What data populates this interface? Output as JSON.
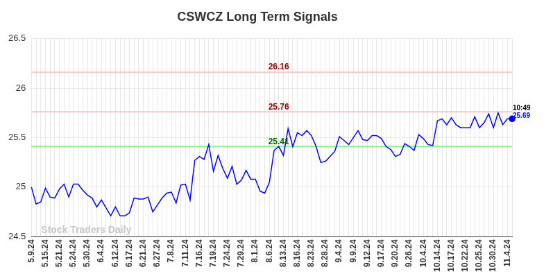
{
  "chart_data": {
    "type": "line",
    "title": "CSWCZ Long Term Signals",
    "watermark": "Stock Traders Daily",
    "color": "#0000ff",
    "ylim": [
      24.5,
      26.5
    ],
    "yticks": [
      24.5,
      25,
      25.5,
      26,
      26.5
    ],
    "grid": true,
    "categories": [
      "5.9.24",
      null,
      null,
      "5.15.24",
      null,
      null,
      "5.21.24",
      null,
      null,
      "5.24.24",
      null,
      null,
      "5.30.24",
      null,
      null,
      "6.4.24",
      null,
      null,
      "6.12.24",
      null,
      null,
      "6.17.24",
      null,
      null,
      "6.21.24",
      null,
      null,
      "6.27.24",
      null,
      null,
      "7.8.24",
      null,
      null,
      "7.11.24",
      null,
      null,
      "7.16.24",
      null,
      null,
      "7.19.24",
      null,
      null,
      "7.24.24",
      null,
      null,
      "7.29.24",
      null,
      null,
      "8.1.24",
      null,
      null,
      "8.6.24",
      null,
      null,
      "8.13.24",
      null,
      null,
      "8.16.24",
      null,
      null,
      "8.23.24",
      null,
      null,
      "8.28.24",
      null,
      null,
      "9.4.24",
      null,
      null,
      "9.9.24",
      null,
      null,
      "9.12.24",
      null,
      null,
      "9.17.24",
      null,
      null,
      "9.20.24",
      null,
      null,
      "9.26.24",
      null,
      null,
      "10.4.24",
      null,
      null,
      "10.14.24",
      null,
      null,
      "10.17.24",
      null,
      null,
      "10.22.24",
      null,
      null,
      "10.25.24",
      null,
      null,
      "10.30.24",
      null,
      null,
      "11.4.24",
      null
    ],
    "values": [
      25.0,
      24.83,
      24.85,
      24.99,
      24.9,
      24.89,
      24.98,
      25.03,
      24.9,
      25.03,
      25.03,
      24.97,
      24.92,
      24.89,
      24.8,
      24.87,
      24.79,
      24.71,
      24.8,
      24.71,
      24.71,
      24.74,
      24.89,
      24.88,
      24.88,
      24.9,
      24.75,
      24.82,
      24.89,
      24.94,
      24.95,
      24.84,
      25.02,
      25.03,
      24.87,
      25.27,
      25.31,
      25.28,
      25.43,
      25.16,
      25.32,
      25.19,
      25.09,
      25.21,
      25.03,
      25.07,
      25.17,
      25.08,
      25.08,
      24.96,
      24.94,
      25.05,
      25.37,
      25.41,
      25.32,
      25.59,
      25.41,
      25.55,
      25.52,
      25.57,
      25.52,
      25.41,
      25.25,
      25.26,
      25.31,
      25.36,
      25.51,
      25.47,
      25.43,
      25.5,
      25.57,
      25.48,
      25.47,
      25.52,
      25.52,
      25.49,
      25.41,
      25.38,
      25.31,
      25.33,
      25.44,
      25.41,
      25.37,
      25.53,
      25.49,
      25.43,
      25.42,
      25.67,
      25.69,
      25.63,
      25.7,
      25.63,
      25.6,
      25.6,
      25.6,
      25.71,
      25.6,
      25.65,
      25.74,
      25.6,
      25.75,
      25.63,
      25.69,
      25.69
    ],
    "reference_lines": [
      {
        "value": 26.16,
        "color": "#f7c8c8",
        "label_color": "#8b0000"
      },
      {
        "value": 25.76,
        "color": "#f7c8c8",
        "label_color": "#8b0000"
      },
      {
        "value": 25.41,
        "color": "#90ee90",
        "label_color": "#006400"
      }
    ],
    "last_point": {
      "time": "10:49",
      "value": 25.69,
      "label_color": "#0000ff"
    }
  }
}
